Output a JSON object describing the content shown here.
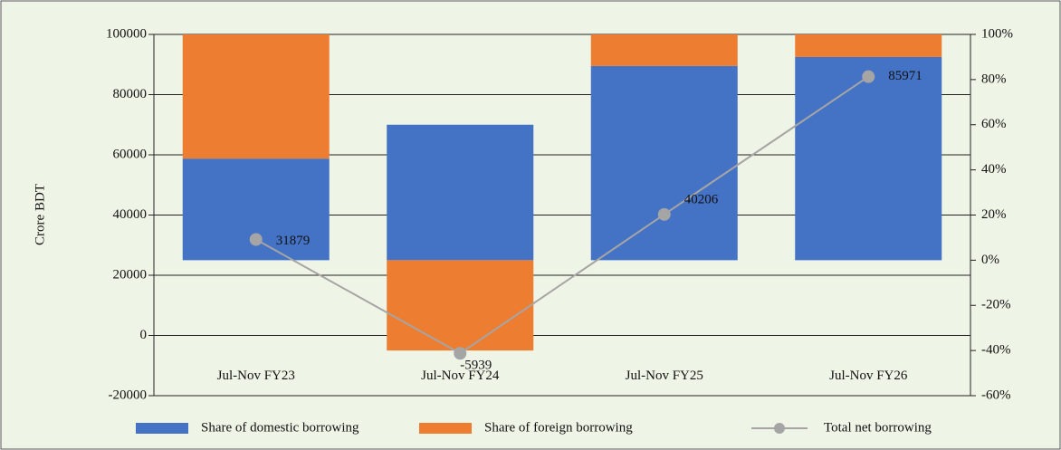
{
  "chart_data": {
    "type": "bar",
    "categories": [
      "Jul-Nov FY23",
      "Jul-Nov FY24",
      "Jul-Nov FY25",
      "Jul-Nov FY26"
    ],
    "y_label": "Crore BDT",
    "series": [
      {
        "name": "Share of domestic borrowing",
        "color": "#4472c4",
        "axis": "y2",
        "values": [
          45,
          60,
          86,
          90
        ]
      },
      {
        "name": "Share of foreign borrowing",
        "color": "#ed7d31",
        "axis": "y2",
        "values": [
          55,
          -40,
          14,
          10
        ]
      },
      {
        "name": "Total net borrowing",
        "type": "line",
        "color": "#a5a5a5",
        "axis": "y",
        "values": [
          31879,
          -5939,
          40206,
          85971
        ]
      }
    ],
    "ylim": [
      -20000,
      100000
    ],
    "yticks": [
      -20000,
      0,
      20000,
      40000,
      60000,
      80000,
      100000
    ],
    "y2lim": [
      -60,
      100
    ],
    "y2ticks": [
      {
        "value": -60,
        "label": "-60%"
      },
      {
        "value": -40,
        "label": "-40%"
      },
      {
        "value": -20,
        "label": "-20%"
      },
      {
        "value": 0,
        "label": "0%"
      },
      {
        "value": 20,
        "label": "20%"
      },
      {
        "value": 40,
        "label": "40%"
      },
      {
        "value": 60,
        "label": "60%"
      },
      {
        "value": 80,
        "label": "80%"
      },
      {
        "value": 100,
        "label": "100%"
      }
    ],
    "grid": true,
    "legend": "bottom"
  }
}
